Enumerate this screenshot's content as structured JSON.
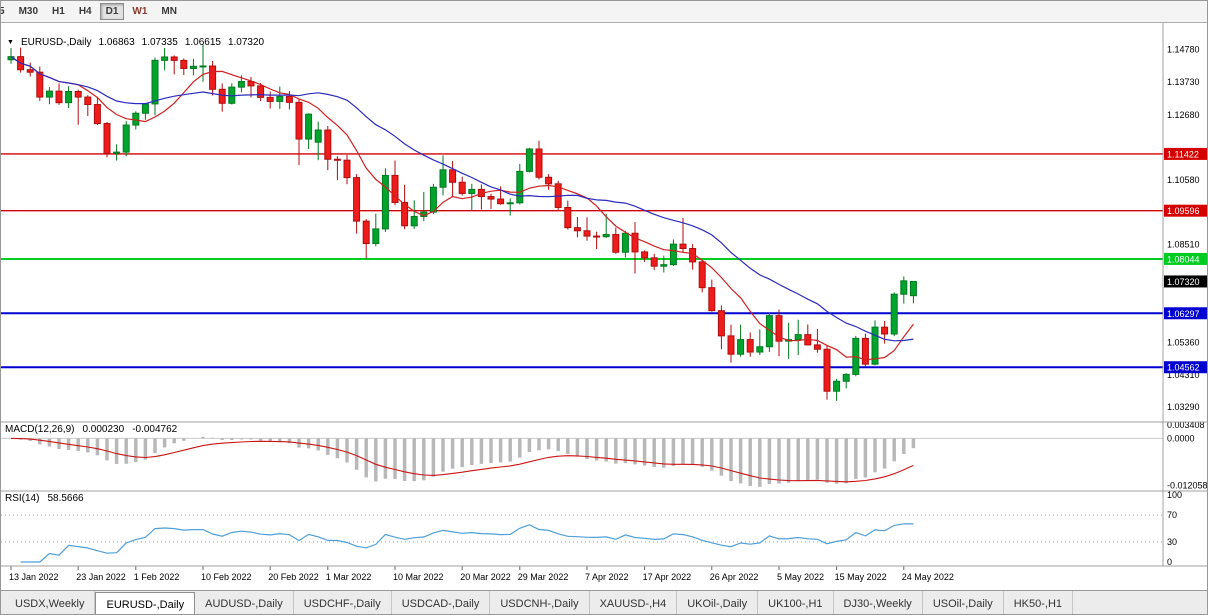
{
  "toolbar": {
    "timeframes": [
      {
        "label": "5",
        "active": false
      },
      {
        "label": "M30",
        "active": false
      },
      {
        "label": "H1",
        "active": false
      },
      {
        "label": "H4",
        "active": false
      },
      {
        "label": "D1",
        "active": true
      },
      {
        "label": "W1",
        "active": false,
        "accent": true
      },
      {
        "label": "MN",
        "active": false
      }
    ]
  },
  "header": {
    "marker": "▼",
    "symbol": "EURUSD-,Daily",
    "open": "1.06863",
    "high": "1.07335",
    "low": "1.06615",
    "close": "1.07320"
  },
  "chart_data": {
    "type": "candlestick",
    "title": "EURUSD-,Daily",
    "style": {
      "background": "#ffffff",
      "up": {
        "fill": "#00a32b",
        "stroke": "#007a1f"
      },
      "down": {
        "fill": "#ef1c1c",
        "stroke": "#b00d0d"
      }
    },
    "y_axis": {
      "min": 1.028,
      "max": 1.156,
      "labels": [
        1.1478,
        1.1373,
        1.1268,
        1.1058,
        1.0851,
        1.0536,
        1.0431,
        1.0329
      ]
    },
    "x_axis": {
      "ticks": [
        {
          "i": 0,
          "label": "13 Jan 2022"
        },
        {
          "i": 7,
          "label": "23 Jan 2022"
        },
        {
          "i": 13,
          "label": "1 Feb 2022"
        },
        {
          "i": 20,
          "label": "10 Feb 2022"
        },
        {
          "i": 27,
          "label": "20 Feb 2022"
        },
        {
          "i": 33,
          "label": "1 Mar 2022"
        },
        {
          "i": 40,
          "label": "10 Mar 2022"
        },
        {
          "i": 47,
          "label": "20 Mar 2022"
        },
        {
          "i": 53,
          "label": "29 Mar 2022"
        },
        {
          "i": 60,
          "label": "7 Apr 2022"
        },
        {
          "i": 66,
          "label": "17 Apr 2022"
        },
        {
          "i": 73,
          "label": "26 Apr 2022"
        },
        {
          "i": 80,
          "label": "5 May 2022"
        },
        {
          "i": 86,
          "label": "15 May 2022"
        },
        {
          "i": 93,
          "label": "24 May 2022"
        }
      ]
    },
    "candles": [
      [
        1.1445,
        1.1483,
        1.1432,
        1.1455
      ],
      [
        1.1455,
        1.1484,
        1.1404,
        1.1413
      ],
      [
        1.1413,
        1.1436,
        1.1391,
        1.1405
      ],
      [
        1.1405,
        1.1423,
        1.1313,
        1.1325
      ],
      [
        1.1325,
        1.1357,
        1.1302,
        1.1344
      ],
      [
        1.1344,
        1.1369,
        1.13,
        1.1307
      ],
      [
        1.1307,
        1.136,
        1.129,
        1.1343
      ],
      [
        1.1343,
        1.1349,
        1.1236,
        1.1325
      ],
      [
        1.1325,
        1.1331,
        1.1264,
        1.1301
      ],
      [
        1.1301,
        1.1323,
        1.1235,
        1.124
      ],
      [
        1.124,
        1.1245,
        1.1131,
        1.1144
      ],
      [
        1.1144,
        1.1173,
        1.1121,
        1.1148
      ],
      [
        1.1148,
        1.1248,
        1.1135,
        1.1235
      ],
      [
        1.1235,
        1.1279,
        1.1221,
        1.1273
      ],
      [
        1.1273,
        1.1305,
        1.1252,
        1.1303
      ],
      [
        1.1303,
        1.1452,
        1.1266,
        1.1443
      ],
      [
        1.1443,
        1.1483,
        1.1411,
        1.1454
      ],
      [
        1.1454,
        1.1459,
        1.1398,
        1.1443
      ],
      [
        1.1443,
        1.1449,
        1.1396,
        1.1417
      ],
      [
        1.1417,
        1.1448,
        1.1395,
        1.1424
      ],
      [
        1.1424,
        1.1495,
        1.1374,
        1.1425
      ],
      [
        1.1425,
        1.1441,
        1.133,
        1.135
      ],
      [
        1.135,
        1.1369,
        1.1278,
        1.1305
      ],
      [
        1.1305,
        1.1369,
        1.1301,
        1.1357
      ],
      [
        1.1357,
        1.1395,
        1.134,
        1.1375
      ],
      [
        1.1375,
        1.139,
        1.1324,
        1.1361
      ],
      [
        1.1361,
        1.137,
        1.1312,
        1.1324
      ],
      [
        1.1324,
        1.1343,
        1.1288,
        1.1311
      ],
      [
        1.1311,
        1.1359,
        1.1287,
        1.1327
      ],
      [
        1.1327,
        1.1344,
        1.1285,
        1.1308
      ],
      [
        1.1308,
        1.1317,
        1.1106,
        1.119
      ],
      [
        1.119,
        1.1273,
        1.1158,
        1.127
      ],
      [
        1.118,
        1.1246,
        1.1122,
        1.1219
      ],
      [
        1.1219,
        1.1232,
        1.109,
        1.1125
      ],
      [
        1.1125,
        1.1135,
        1.1058,
        1.1122
      ],
      [
        1.1122,
        1.1139,
        1.1045,
        1.1066
      ],
      [
        1.1066,
        1.1077,
        1.0886,
        1.0926
      ],
      [
        1.0926,
        1.0933,
        1.0806,
        1.0854
      ],
      [
        1.0854,
        1.095,
        1.0845,
        1.0901
      ],
      [
        1.0901,
        1.1096,
        1.0891,
        1.1073
      ],
      [
        1.1073,
        1.1121,
        1.0977,
        1.0986
      ],
      [
        1.0986,
        1.1043,
        1.09,
        1.0911
      ],
      [
        1.0911,
        1.0993,
        1.0901,
        1.0941
      ],
      [
        1.0941,
        1.102,
        1.0926,
        1.0955
      ],
      [
        1.0955,
        1.1046,
        1.0949,
        1.1035
      ],
      [
        1.1035,
        1.1137,
        1.1009,
        1.1091
      ],
      [
        1.1091,
        1.1119,
        1.1003,
        1.1051
      ],
      [
        1.1051,
        1.1069,
        1.1008,
        1.1015
      ],
      [
        1.1015,
        1.1046,
        1.0961,
        1.1028
      ],
      [
        1.1028,
        1.1044,
        1.0963,
        1.1005
      ],
      [
        1.1005,
        1.1014,
        1.0965,
        1.0997
      ],
      [
        1.0997,
        1.1038,
        1.0979,
        1.0982
      ],
      [
        1.0982,
        1.0999,
        1.0944,
        1.0985
      ],
      [
        1.0985,
        1.111,
        1.098,
        1.1086
      ],
      [
        1.1086,
        1.1162,
        1.1083,
        1.1158
      ],
      [
        1.1158,
        1.1185,
        1.106,
        1.1067
      ],
      [
        1.1067,
        1.1077,
        1.1027,
        1.1046
      ],
      [
        1.1046,
        1.1056,
        1.0961,
        1.097
      ],
      [
        1.097,
        1.0992,
        1.0899,
        1.0905
      ],
      [
        1.0905,
        1.0939,
        1.0874,
        1.0895
      ],
      [
        1.0895,
        1.0938,
        1.0863,
        1.0878
      ],
      [
        1.0878,
        1.0892,
        1.0836,
        1.0876
      ],
      [
        1.0876,
        1.095,
        1.0872,
        1.0883
      ],
      [
        1.0883,
        1.0905,
        1.0821,
        1.0826
      ],
      [
        1.0826,
        1.0895,
        1.0809,
        1.0887
      ],
      [
        1.0887,
        1.0923,
        1.0757,
        1.0827
      ],
      [
        1.0827,
        1.0832,
        1.0795,
        1.0808
      ],
      [
        1.0808,
        1.0821,
        1.0769,
        1.0781
      ],
      [
        1.0781,
        1.0815,
        1.0761,
        1.0786
      ],
      [
        1.0786,
        1.0867,
        1.0782,
        1.0852
      ],
      [
        1.0852,
        1.0936,
        1.0824,
        1.0838
      ],
      [
        1.0838,
        1.0852,
        1.077,
        1.0795
      ],
      [
        1.0795,
        1.0797,
        1.0697,
        1.0712
      ],
      [
        1.0712,
        1.0738,
        1.0635,
        1.0638
      ],
      [
        1.0638,
        1.0655,
        1.0514,
        1.0557
      ],
      [
        1.0557,
        1.0593,
        1.0471,
        1.0498
      ],
      [
        1.0498,
        1.0593,
        1.049,
        1.0545
      ],
      [
        1.0545,
        1.0568,
        1.049,
        1.0505
      ],
      [
        1.0505,
        1.0578,
        1.0495,
        1.0522
      ],
      [
        1.0522,
        1.0632,
        1.0505,
        1.0622
      ],
      [
        1.0622,
        1.0642,
        1.0492,
        1.054
      ],
      [
        1.054,
        1.0599,
        1.0483,
        1.0545
      ],
      [
        1.0545,
        1.0609,
        1.0495,
        1.0561
      ],
      [
        1.0561,
        1.0594,
        1.0526,
        1.0528
      ],
      [
        1.0528,
        1.0579,
        1.0503,
        1.0514
      ],
      [
        1.0514,
        1.0525,
        1.0352,
        1.0379
      ],
      [
        1.0379,
        1.0419,
        1.0348,
        1.0411
      ],
      [
        1.0411,
        1.0437,
        1.0388,
        1.0433
      ],
      [
        1.0433,
        1.0557,
        1.0427,
        1.0549
      ],
      [
        1.0549,
        1.0564,
        1.0459,
        1.0466
      ],
      [
        1.0466,
        1.0607,
        1.0462,
        1.0585
      ],
      [
        1.0585,
        1.0605,
        1.0532,
        1.0563
      ],
      [
        1.0563,
        1.0697,
        1.0556,
        1.0691
      ],
      [
        1.0691,
        1.0748,
        1.0661,
        1.0734
      ],
      [
        1.06863,
        1.07335,
        1.06615,
        1.0732
      ]
    ],
    "moving_averages": [
      {
        "period": 8,
        "color": "#d02020"
      },
      {
        "period": 21,
        "color": "#2b2bc0"
      }
    ],
    "hlines": [
      {
        "price": 1.11422,
        "label": "1.11422",
        "color": "#d40000",
        "width": 1.4
      },
      {
        "price": 1.09596,
        "label": "1.09596",
        "color": "#d40000",
        "width": 1.4
      },
      {
        "price": 1.08044,
        "label": "1.08044",
        "color": "#00cc22",
        "width": 2
      },
      {
        "price": 1.06297,
        "label": "1.06297",
        "color": "#0000d0",
        "width": 2
      },
      {
        "price": 1.04562,
        "label": "1.04562",
        "color": "#0000d0",
        "width": 2
      }
    ],
    "current_price": {
      "value": 1.0732,
      "label": "1.07320",
      "bg": "#000000"
    },
    "macd": {
      "label": "MACD(12,26,9)",
      "values": [
        "0.000230",
        "-0.004762"
      ],
      "fast": 12,
      "slow": 26,
      "signal": 9,
      "range": [
        -0.0135,
        0.0042
      ],
      "axis_labels": [
        {
          "v": 0.003408,
          "label": "0.003408"
        },
        {
          "v": 0,
          "label": "0.0000"
        },
        {
          "v": -0.012058,
          "label": "-0.012058"
        }
      ],
      "histogram_color": "#b8b8b8",
      "signal_color": "#cc1515"
    },
    "rsi": {
      "label": "RSI(14)",
      "value": "58.5666",
      "period": 14,
      "levels": [
        70,
        30
      ],
      "axis_labels": [
        100,
        70,
        30,
        0
      ],
      "line_color": "#4f9fd8",
      "level_color": "#86aecb"
    }
  },
  "bottom_tabs": {
    "items": [
      {
        "label": "USDX,Weekly",
        "active": false
      },
      {
        "label": "EURUSD-,Daily",
        "active": true
      },
      {
        "label": "AUDUSD-,Daily",
        "active": false
      },
      {
        "label": "USDCHF-,Daily",
        "active": false
      },
      {
        "label": "USDCAD-,Daily",
        "active": false
      },
      {
        "label": "USDCNH-,Daily",
        "active": false
      },
      {
        "label": "XAUUSD-,H4",
        "active": false
      },
      {
        "label": "UKOil-,Daily",
        "active": false
      },
      {
        "label": "UK100-,H1",
        "active": false
      },
      {
        "label": "DJ30-,Weekly",
        "active": false
      },
      {
        "label": "USOil-,Daily",
        "active": false
      },
      {
        "label": "HK50-,H1",
        "active": false
      }
    ]
  }
}
